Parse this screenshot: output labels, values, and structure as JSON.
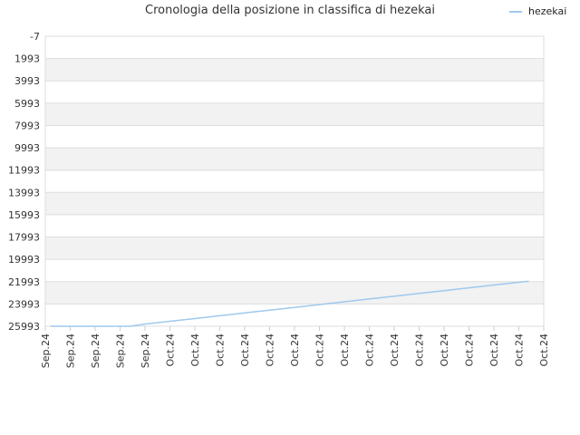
{
  "chart_data": {
    "type": "line",
    "title": "Cronologia della posizione in classifica di hezekai",
    "xlabel": "",
    "ylabel": "",
    "y_reversed": true,
    "ylim": [
      -7,
      25993
    ],
    "y_ticks": [
      "-7",
      "1993",
      "3993",
      "5993",
      "7993",
      "9993",
      "11993",
      "13993",
      "15993",
      "17993",
      "19993",
      "21993",
      "23993",
      "25993"
    ],
    "x_ticks": [
      "Sep.24",
      "Sep.24",
      "Sep.24",
      "Sep.24",
      "Sep.24",
      "Oct.24",
      "Oct.24",
      "Oct.24",
      "Oct.24",
      "Oct.24",
      "Oct.24",
      "Oct.24",
      "Oct.24",
      "Oct.24",
      "Oct.24",
      "Oct.24",
      "Oct.24",
      "Oct.24",
      "Oct.24",
      "Oct.24",
      "Oct.24"
    ],
    "grid": true,
    "legend_position": "top-right",
    "colors": {
      "line": "#9fc9ee",
      "band": "#f2f2f2",
      "grid": "#dddddd"
    },
    "series": [
      {
        "name": "hezekai",
        "points": [
          {
            "x": 0.2,
            "y": 25993
          },
          {
            "x": 3.4,
            "y": 25993
          },
          {
            "x": 4.0,
            "y": 25800
          },
          {
            "x": 5.0,
            "y": 25550
          },
          {
            "x": 6.0,
            "y": 25300
          },
          {
            "x": 7.0,
            "y": 25050
          },
          {
            "x": 8.0,
            "y": 24800
          },
          {
            "x": 9.0,
            "y": 24550
          },
          {
            "x": 10.0,
            "y": 24300
          },
          {
            "x": 11.0,
            "y": 24050
          },
          {
            "x": 12.0,
            "y": 23800
          },
          {
            "x": 13.0,
            "y": 23550
          },
          {
            "x": 14.0,
            "y": 23300
          },
          {
            "x": 15.0,
            "y": 23050
          },
          {
            "x": 16.0,
            "y": 22800
          },
          {
            "x": 17.0,
            "y": 22550
          },
          {
            "x": 18.0,
            "y": 22300
          },
          {
            "x": 19.0,
            "y": 22050
          },
          {
            "x": 19.4,
            "y": 21950
          }
        ]
      }
    ]
  }
}
